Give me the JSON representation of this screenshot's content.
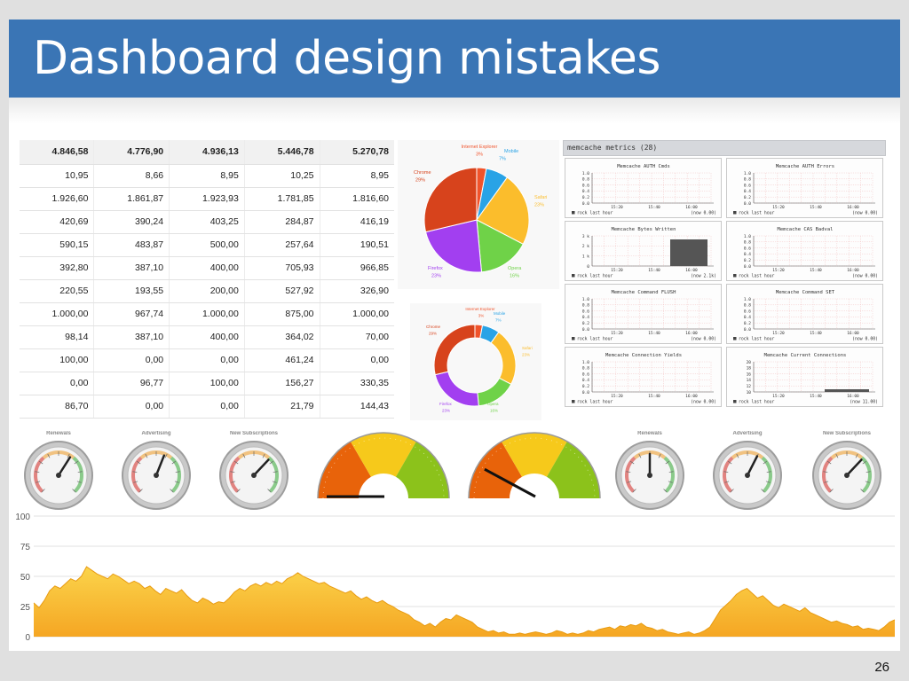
{
  "slide": {
    "title": "Dashboard design mistakes",
    "page_number": "26"
  },
  "table": {
    "rows": [
      [
        "4.846,58",
        "4.776,90",
        "4.936,13",
        "5.446,78",
        "5.270,78"
      ],
      [
        "10,95",
        "8,66",
        "8,95",
        "10,25",
        "8,95"
      ],
      [
        "1.926,60",
        "1.861,87",
        "1.923,93",
        "1.781,85",
        "1.816,60"
      ],
      [
        "420,69",
        "390,24",
        "403,25",
        "284,87",
        "416,19"
      ],
      [
        "590,15",
        "483,87",
        "500,00",
        "257,64",
        "190,51"
      ],
      [
        "392,80",
        "387,10",
        "400,00",
        "705,93",
        "966,85"
      ],
      [
        "220,55",
        "193,55",
        "200,00",
        "527,92",
        "326,90"
      ],
      [
        "1.000,00",
        "967,74",
        "1.000,00",
        "875,00",
        "1.000,00"
      ],
      [
        "98,14",
        "387,10",
        "400,00",
        "364,02",
        "70,00"
      ],
      [
        "100,00",
        "0,00",
        "0,00",
        "461,24",
        "0,00"
      ],
      [
        "0,00",
        "96,77",
        "100,00",
        "156,27",
        "330,35"
      ],
      [
        "86,70",
        "0,00",
        "0,00",
        "21,79",
        "144,43"
      ]
    ]
  },
  "chart_data": [
    {
      "type": "pie",
      "slices": [
        {
          "label": "Internet Explorer",
          "pct_label": "3%",
          "value": 3,
          "color": "#f0532b"
        },
        {
          "label": "Mobile",
          "pct_label": "7%",
          "value": 7,
          "color": "#29a3e6"
        },
        {
          "label": "Safari",
          "pct_label": "23%",
          "value": 23,
          "color": "#fbbd2c"
        },
        {
          "label": "Opera",
          "pct_label": "16%",
          "value": 16,
          "color": "#6fd248"
        },
        {
          "label": "Firefox",
          "pct_label": "23%",
          "value": 23,
          "color": "#a23ff0"
        },
        {
          "label": "Chrome",
          "pct_label": "29%",
          "value": 29,
          "color": "#d7431c"
        }
      ]
    },
    {
      "type": "pie",
      "donut": true,
      "slices": [
        {
          "label": "Internet Explorer",
          "pct_label": "3%",
          "value": 3,
          "color": "#f0532b"
        },
        {
          "label": "Mobile",
          "pct_label": "7%",
          "value": 7,
          "color": "#29a3e6"
        },
        {
          "label": "Safari",
          "pct_label": "23%",
          "value": 23,
          "color": "#fbbd2c"
        },
        {
          "label": "Opera",
          "pct_label": "16%",
          "value": 16,
          "color": "#6fd248"
        },
        {
          "label": "Firefox",
          "pct_label": "23%",
          "value": 23,
          "color": "#a23ff0"
        },
        {
          "label": "Chrome",
          "pct_label": "29%",
          "value": 29,
          "color": "#d7431c"
        }
      ]
    },
    {
      "type": "area",
      "ylim": [
        0,
        100
      ],
      "yticks": [
        0,
        25,
        50,
        75,
        100
      ],
      "grid": true,
      "color": "#f5a623",
      "values": [
        28,
        24,
        30,
        38,
        42,
        40,
        44,
        48,
        46,
        50,
        58,
        55,
        52,
        50,
        48,
        52,
        50,
        47,
        44,
        46,
        44,
        40,
        42,
        38,
        35,
        40,
        38,
        36,
        39,
        34,
        30,
        28,
        32,
        30,
        27,
        29,
        28,
        32,
        37,
        40,
        38,
        42,
        44,
        42,
        45,
        43,
        46,
        44,
        48,
        50,
        53,
        50,
        48,
        46,
        44,
        45,
        42,
        40,
        38,
        36,
        38,
        34,
        31,
        33,
        30,
        28,
        30,
        27,
        25,
        22,
        20,
        18,
        14,
        12,
        9,
        11,
        8,
        12,
        15,
        14,
        18,
        16,
        14,
        12,
        8,
        6,
        4,
        5,
        3,
        4,
        2,
        2,
        3,
        2,
        3,
        4,
        3,
        2,
        3,
        5,
        4,
        2,
        3,
        2,
        3,
        5,
        4,
        6,
        7,
        8,
        6,
        9,
        8,
        10,
        9,
        11,
        8,
        7,
        5,
        6,
        4,
        3,
        2,
        3,
        4,
        2,
        3,
        5,
        8,
        15,
        22,
        26,
        30,
        35,
        38,
        40,
        36,
        32,
        34,
        30,
        26,
        24,
        27,
        25,
        23,
        21,
        24,
        20,
        18,
        16,
        14,
        12,
        13,
        11,
        10,
        8,
        9,
        6,
        7,
        6,
        5,
        8,
        12,
        14
      ],
      "title": "",
      "xlabel": "",
      "ylabel": ""
    },
    {
      "type": "gauge",
      "description_values_only": true,
      "gauges": [
        {
          "label": "Renewals",
          "value": 0.62
        },
        {
          "label": "Advertising",
          "value": 0.58
        },
        {
          "label": "New Subscriptions",
          "value": 0.66
        },
        {
          "label": "",
          "value": 0.0,
          "style": "half"
        },
        {
          "label": "",
          "value": 0.16,
          "style": "half"
        },
        {
          "label": "Renewals",
          "value": 0.5
        },
        {
          "label": "Advertising",
          "value": 0.6
        },
        {
          "label": "New Subscriptions",
          "value": 0.66
        }
      ]
    }
  ],
  "memcache": {
    "header": "memcache metrics (28)",
    "panels": [
      {
        "title": "Memcache AUTH Cmds",
        "legend": "rock last hour",
        "now": "(now 0.00)",
        "yticks": [
          "1.0",
          "0.8",
          "0.6",
          "0.4",
          "0.2",
          "0.0"
        ],
        "xticks": [
          "15:20",
          "15:40",
          "16:00"
        ],
        "data": "none"
      },
      {
        "title": "Memcache AUTH Errors",
        "legend": "rock last hour",
        "now": "(now 0.00)",
        "yticks": [
          "1.0",
          "0.8",
          "0.6",
          "0.4",
          "0.2",
          "0.0"
        ],
        "xticks": [
          "15:20",
          "15:40",
          "16:00"
        ],
        "data": "none"
      },
      {
        "title": "Memcache Bytes Written",
        "legend": "rock last hour",
        "now": "(now 2.1k)",
        "yticks": [
          "3 k",
          "2 k",
          "1 k",
          "0"
        ],
        "xticks": [
          "15:20",
          "15:40",
          "16:00"
        ],
        "data": "block"
      },
      {
        "title": "Memcache CAS Badval",
        "legend": "rock last hour",
        "now": "(now 0.00)",
        "yticks": [
          "1.0",
          "0.8",
          "0.6",
          "0.4",
          "0.2",
          "0.0"
        ],
        "xticks": [
          "15:20",
          "15:40",
          "16:00"
        ],
        "data": "none"
      },
      {
        "title": "Memcache Command FLUSH",
        "legend": "rock last hour",
        "now": "(now 0.00)",
        "yticks": [
          "1.0",
          "0.8",
          "0.6",
          "0.4",
          "0.2",
          "0.0"
        ],
        "xticks": [
          "15:20",
          "15:40",
          "16:00"
        ],
        "data": "none"
      },
      {
        "title": "Memcache Command SET",
        "legend": "rock last hour",
        "now": "(now 0.00)",
        "yticks": [
          "1.0",
          "0.8",
          "0.6",
          "0.4",
          "0.2",
          "0.0"
        ],
        "xticks": [
          "15:20",
          "15:40",
          "16:00"
        ],
        "data": "none"
      },
      {
        "title": "Memcache Connection Yields",
        "legend": "rock last hour",
        "now": "(now 0.00)",
        "yticks": [
          "1.0",
          "0.8",
          "0.6",
          "0.4",
          "0.2",
          "0.0"
        ],
        "xticks": [
          "15:20",
          "15:40",
          "16:00"
        ],
        "data": "none"
      },
      {
        "title": "Memcache Current Connections",
        "legend": "rock last hour",
        "now": "(now 11.00)",
        "yticks": [
          "20",
          "18",
          "16",
          "14",
          "12",
          "10"
        ],
        "xticks": [
          "15:20",
          "15:40",
          "16:00"
        ],
        "data": "bar"
      }
    ]
  },
  "colors": {
    "title_bar": "#3a75b5",
    "gauge_red": "#e8630a",
    "gauge_yellow": "#f6c91b",
    "gauge_green": "#8cc21b"
  }
}
